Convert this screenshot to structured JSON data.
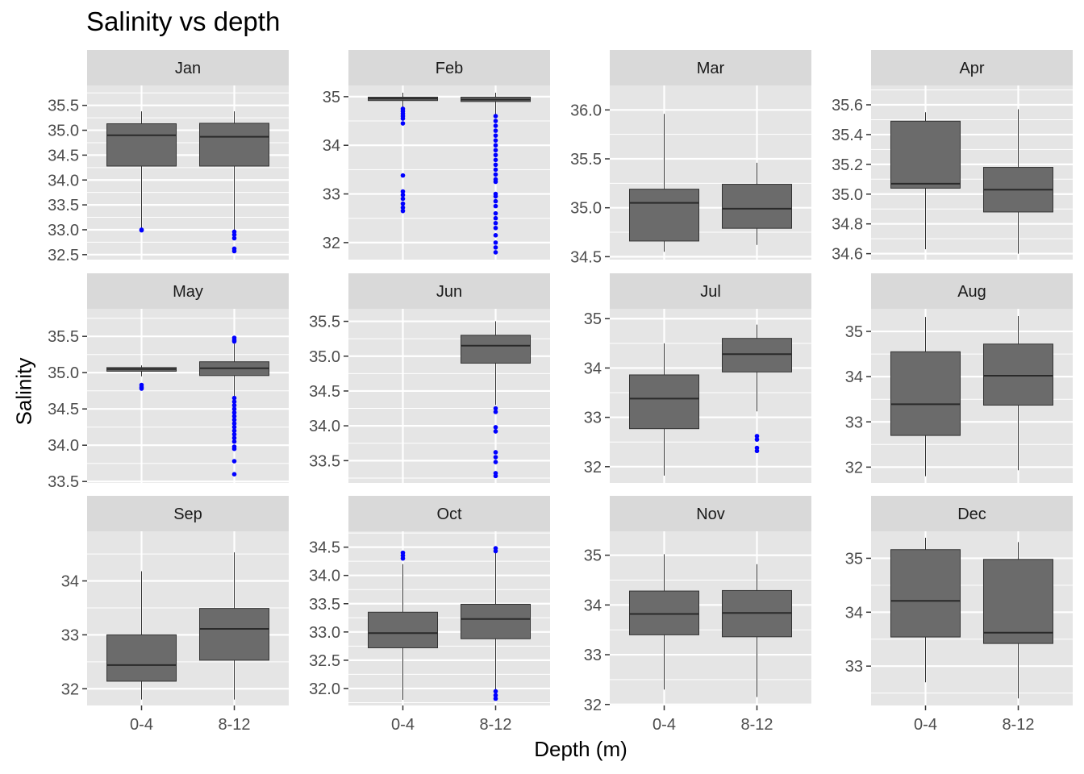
{
  "title": "Salinity vs depth",
  "xlabel": "Depth (m)",
  "ylabel": "Salinity",
  "chart_data": {
    "type": "box",
    "facet_by": "month",
    "categories": [
      "0-4",
      "8-12"
    ],
    "colors": {
      "panel": "#e5e5e5",
      "strip": "#d9d9d9",
      "box": "#6b6b6b",
      "outlier": "#0000ff",
      "grid": "#ffffff"
    },
    "panels": [
      {
        "name": "Jan",
        "ylim": [
          32.4,
          35.9
        ],
        "yticks": [
          32.5,
          33.0,
          33.5,
          34.0,
          34.5,
          35.0,
          35.5
        ],
        "tick_labels": [
          "32.5",
          "33.0",
          "33.5",
          "34.0",
          "34.5",
          "35.0",
          "35.5"
        ],
        "boxes": [
          {
            "q1": 34.28,
            "median": 34.9,
            "q3": 35.13,
            "whisker_low": 33.0,
            "whisker_high": 35.38,
            "outliers": [
              33.0,
              32.99
            ]
          },
          {
            "q1": 34.28,
            "median": 34.87,
            "q3": 35.14,
            "whisker_low": 33.0,
            "whisker_high": 35.38,
            "outliers": [
              32.96,
              32.9,
              32.83,
              32.62,
              32.57
            ]
          }
        ]
      },
      {
        "name": "Feb",
        "ylim": [
          31.65,
          35.23
        ],
        "yticks": [
          32,
          33,
          34,
          35
        ],
        "tick_labels": [
          "32",
          "33",
          "34",
          "35"
        ],
        "boxes": [
          {
            "q1": 34.92,
            "median": 34.96,
            "q3": 34.99,
            "whisker_low": 34.78,
            "whisker_high": 35.08,
            "outliers": [
              34.75,
              34.7,
              34.65,
              34.6,
              34.55,
              34.45,
              33.38,
              33.05,
              32.98,
              32.9,
              32.8,
              32.72,
              32.65
            ]
          },
          {
            "q1": 34.9,
            "median": 34.94,
            "q3": 34.99,
            "whisker_low": 34.62,
            "whisker_high": 35.08,
            "outliers": [
              34.6,
              34.5,
              34.4,
              34.3,
              34.2,
              34.1,
              34.0,
              33.9,
              33.8,
              33.7,
              33.6,
              33.5,
              33.4,
              33.3,
              33.25,
              33.0,
              32.95,
              32.85,
              32.75,
              32.6,
              32.5,
              32.4,
              32.3,
              32.15,
              32.0,
              31.9,
              31.8
            ]
          }
        ]
      },
      {
        "name": "Mar",
        "ylim": [
          34.47,
          36.25
        ],
        "yticks": [
          34.5,
          35.0,
          35.5,
          36.0
        ],
        "tick_labels": [
          "34.5",
          "35.0",
          "35.5",
          "36.0"
        ],
        "boxes": [
          {
            "q1": 34.66,
            "median": 35.05,
            "q3": 35.19,
            "whisker_low": 34.55,
            "whisker_high": 35.96,
            "outliers": []
          },
          {
            "q1": 34.79,
            "median": 34.99,
            "q3": 35.24,
            "whisker_low": 34.62,
            "whisker_high": 35.46,
            "outliers": []
          }
        ]
      },
      {
        "name": "Apr",
        "ylim": [
          34.56,
          35.73
        ],
        "yticks": [
          34.6,
          34.8,
          35.0,
          35.2,
          35.4,
          35.6
        ],
        "tick_labels": [
          "34.6",
          "34.8",
          "35.0",
          "35.2",
          "35.4",
          "35.6"
        ],
        "boxes": [
          {
            "q1": 35.04,
            "median": 35.07,
            "q3": 35.49,
            "whisker_low": 34.63,
            "whisker_high": 35.55,
            "outliers": []
          },
          {
            "q1": 34.88,
            "median": 35.03,
            "q3": 35.18,
            "whisker_low": 34.6,
            "whisker_high": 35.57,
            "outliers": []
          }
        ]
      },
      {
        "name": "May",
        "ylim": [
          33.48,
          35.88
        ],
        "yticks": [
          33.5,
          34.0,
          34.5,
          35.0,
          35.5
        ],
        "tick_labels": [
          "33.5",
          "34.0",
          "34.5",
          "35.0",
          "35.5"
        ],
        "boxes": [
          {
            "q1": 35.02,
            "median": 35.05,
            "q3": 35.07,
            "whisker_low": 34.95,
            "whisker_high": 35.1,
            "outliers": [
              34.83,
              34.8,
              34.78
            ]
          },
          {
            "q1": 34.96,
            "median": 35.06,
            "q3": 35.15,
            "whisker_low": 34.67,
            "whisker_high": 35.4,
            "outliers": [
              35.48,
              35.45,
              35.43,
              34.65,
              34.6,
              34.55,
              34.5,
              34.45,
              34.4,
              34.35,
              34.3,
              34.25,
              34.2,
              34.15,
              34.1,
              34.05,
              33.98,
              33.95,
              33.78,
              33.6
            ]
          }
        ]
      },
      {
        "name": "Jun",
        "ylim": [
          33.18,
          35.68
        ],
        "yticks": [
          33.5,
          34.0,
          34.5,
          35.0,
          35.5
        ],
        "tick_labels": [
          "33.5",
          "34.0",
          "34.5",
          "35.0",
          "35.5"
        ],
        "boxes": [
          {
            "q1": null,
            "median": null,
            "q3": null,
            "whisker_low": null,
            "whisker_high": null,
            "outliers": []
          },
          {
            "q1": 34.9,
            "median": 35.15,
            "q3": 35.3,
            "whisker_low": 34.3,
            "whisker_high": 35.5,
            "outliers": [
              34.25,
              34.2,
              33.98,
              33.92,
              33.62,
              33.55,
              33.48,
              33.32,
              33.28
            ]
          }
        ]
      },
      {
        "name": "Jul",
        "ylim": [
          31.67,
          35.2
        ],
        "yticks": [
          32,
          33,
          34,
          35
        ],
        "tick_labels": [
          "32",
          "33",
          "34",
          "35"
        ],
        "boxes": [
          {
            "q1": 32.77,
            "median": 33.38,
            "q3": 33.86,
            "whisker_low": 31.82,
            "whisker_high": 34.5,
            "outliers": []
          },
          {
            "q1": 33.92,
            "median": 34.28,
            "q3": 34.6,
            "whisker_low": 33.12,
            "whisker_high": 34.88,
            "outliers": [
              32.62,
              32.55,
              32.38,
              32.32
            ]
          }
        ]
      },
      {
        "name": "Aug",
        "ylim": [
          31.65,
          35.5
        ],
        "yticks": [
          32,
          33,
          34,
          35
        ],
        "tick_labels": [
          "32",
          "33",
          "34",
          "35"
        ],
        "boxes": [
          {
            "q1": 32.7,
            "median": 33.39,
            "q3": 34.55,
            "whisker_low": 31.8,
            "whisker_high": 35.32,
            "outliers": []
          },
          {
            "q1": 33.37,
            "median": 34.02,
            "q3": 34.72,
            "whisker_low": 31.93,
            "whisker_high": 35.34,
            "outliers": []
          }
        ]
      },
      {
        "name": "Sep",
        "ylim": [
          31.69,
          34.92
        ],
        "yticks": [
          32,
          33,
          34
        ],
        "tick_labels": [
          "32",
          "33",
          "34"
        ],
        "boxes": [
          {
            "q1": 32.14,
            "median": 32.44,
            "q3": 33.0,
            "whisker_low": 31.8,
            "whisker_high": 34.18,
            "outliers": []
          },
          {
            "q1": 32.53,
            "median": 33.11,
            "q3": 33.49,
            "whisker_low": 31.8,
            "whisker_high": 34.53,
            "outliers": []
          }
        ]
      },
      {
        "name": "Oct",
        "ylim": [
          31.7,
          34.78
        ],
        "yticks": [
          32.0,
          32.5,
          33.0,
          33.5,
          34.0,
          34.5
        ],
        "tick_labels": [
          "32.0",
          "32.5",
          "33.0",
          "33.5",
          "34.0",
          "34.5"
        ],
        "boxes": [
          {
            "q1": 32.72,
            "median": 32.98,
            "q3": 33.35,
            "whisker_low": 31.8,
            "whisker_high": 34.2,
            "outliers": [
              34.4,
              34.35,
              34.3
            ]
          },
          {
            "q1": 32.88,
            "median": 33.23,
            "q3": 33.49,
            "whisker_low": 31.98,
            "whisker_high": 34.4,
            "outliers": [
              34.48,
              34.43,
              31.95,
              31.88,
              31.82
            ]
          }
        ]
      },
      {
        "name": "Nov",
        "ylim": [
          31.98,
          35.48
        ],
        "yticks": [
          32,
          33,
          34,
          35
        ],
        "tick_labels": [
          "32",
          "33",
          "34",
          "35"
        ],
        "boxes": [
          {
            "q1": 33.4,
            "median": 33.82,
            "q3": 34.28,
            "whisker_low": 32.3,
            "whisker_high": 35.02,
            "outliers": []
          },
          {
            "q1": 33.36,
            "median": 33.84,
            "q3": 34.29,
            "whisker_low": 32.15,
            "whisker_high": 34.82,
            "outliers": []
          }
        ]
      },
      {
        "name": "Dec",
        "ylim": [
          32.27,
          35.5
        ],
        "yticks": [
          33,
          34,
          35
        ],
        "tick_labels": [
          "33",
          "34",
          "35"
        ],
        "boxes": [
          {
            "q1": 33.54,
            "median": 34.21,
            "q3": 35.16,
            "whisker_low": 32.7,
            "whisker_high": 35.38,
            "outliers": []
          },
          {
            "q1": 33.42,
            "median": 33.62,
            "q3": 34.98,
            "whisker_low": 32.4,
            "whisker_high": 35.3,
            "outliers": []
          }
        ]
      }
    ]
  }
}
